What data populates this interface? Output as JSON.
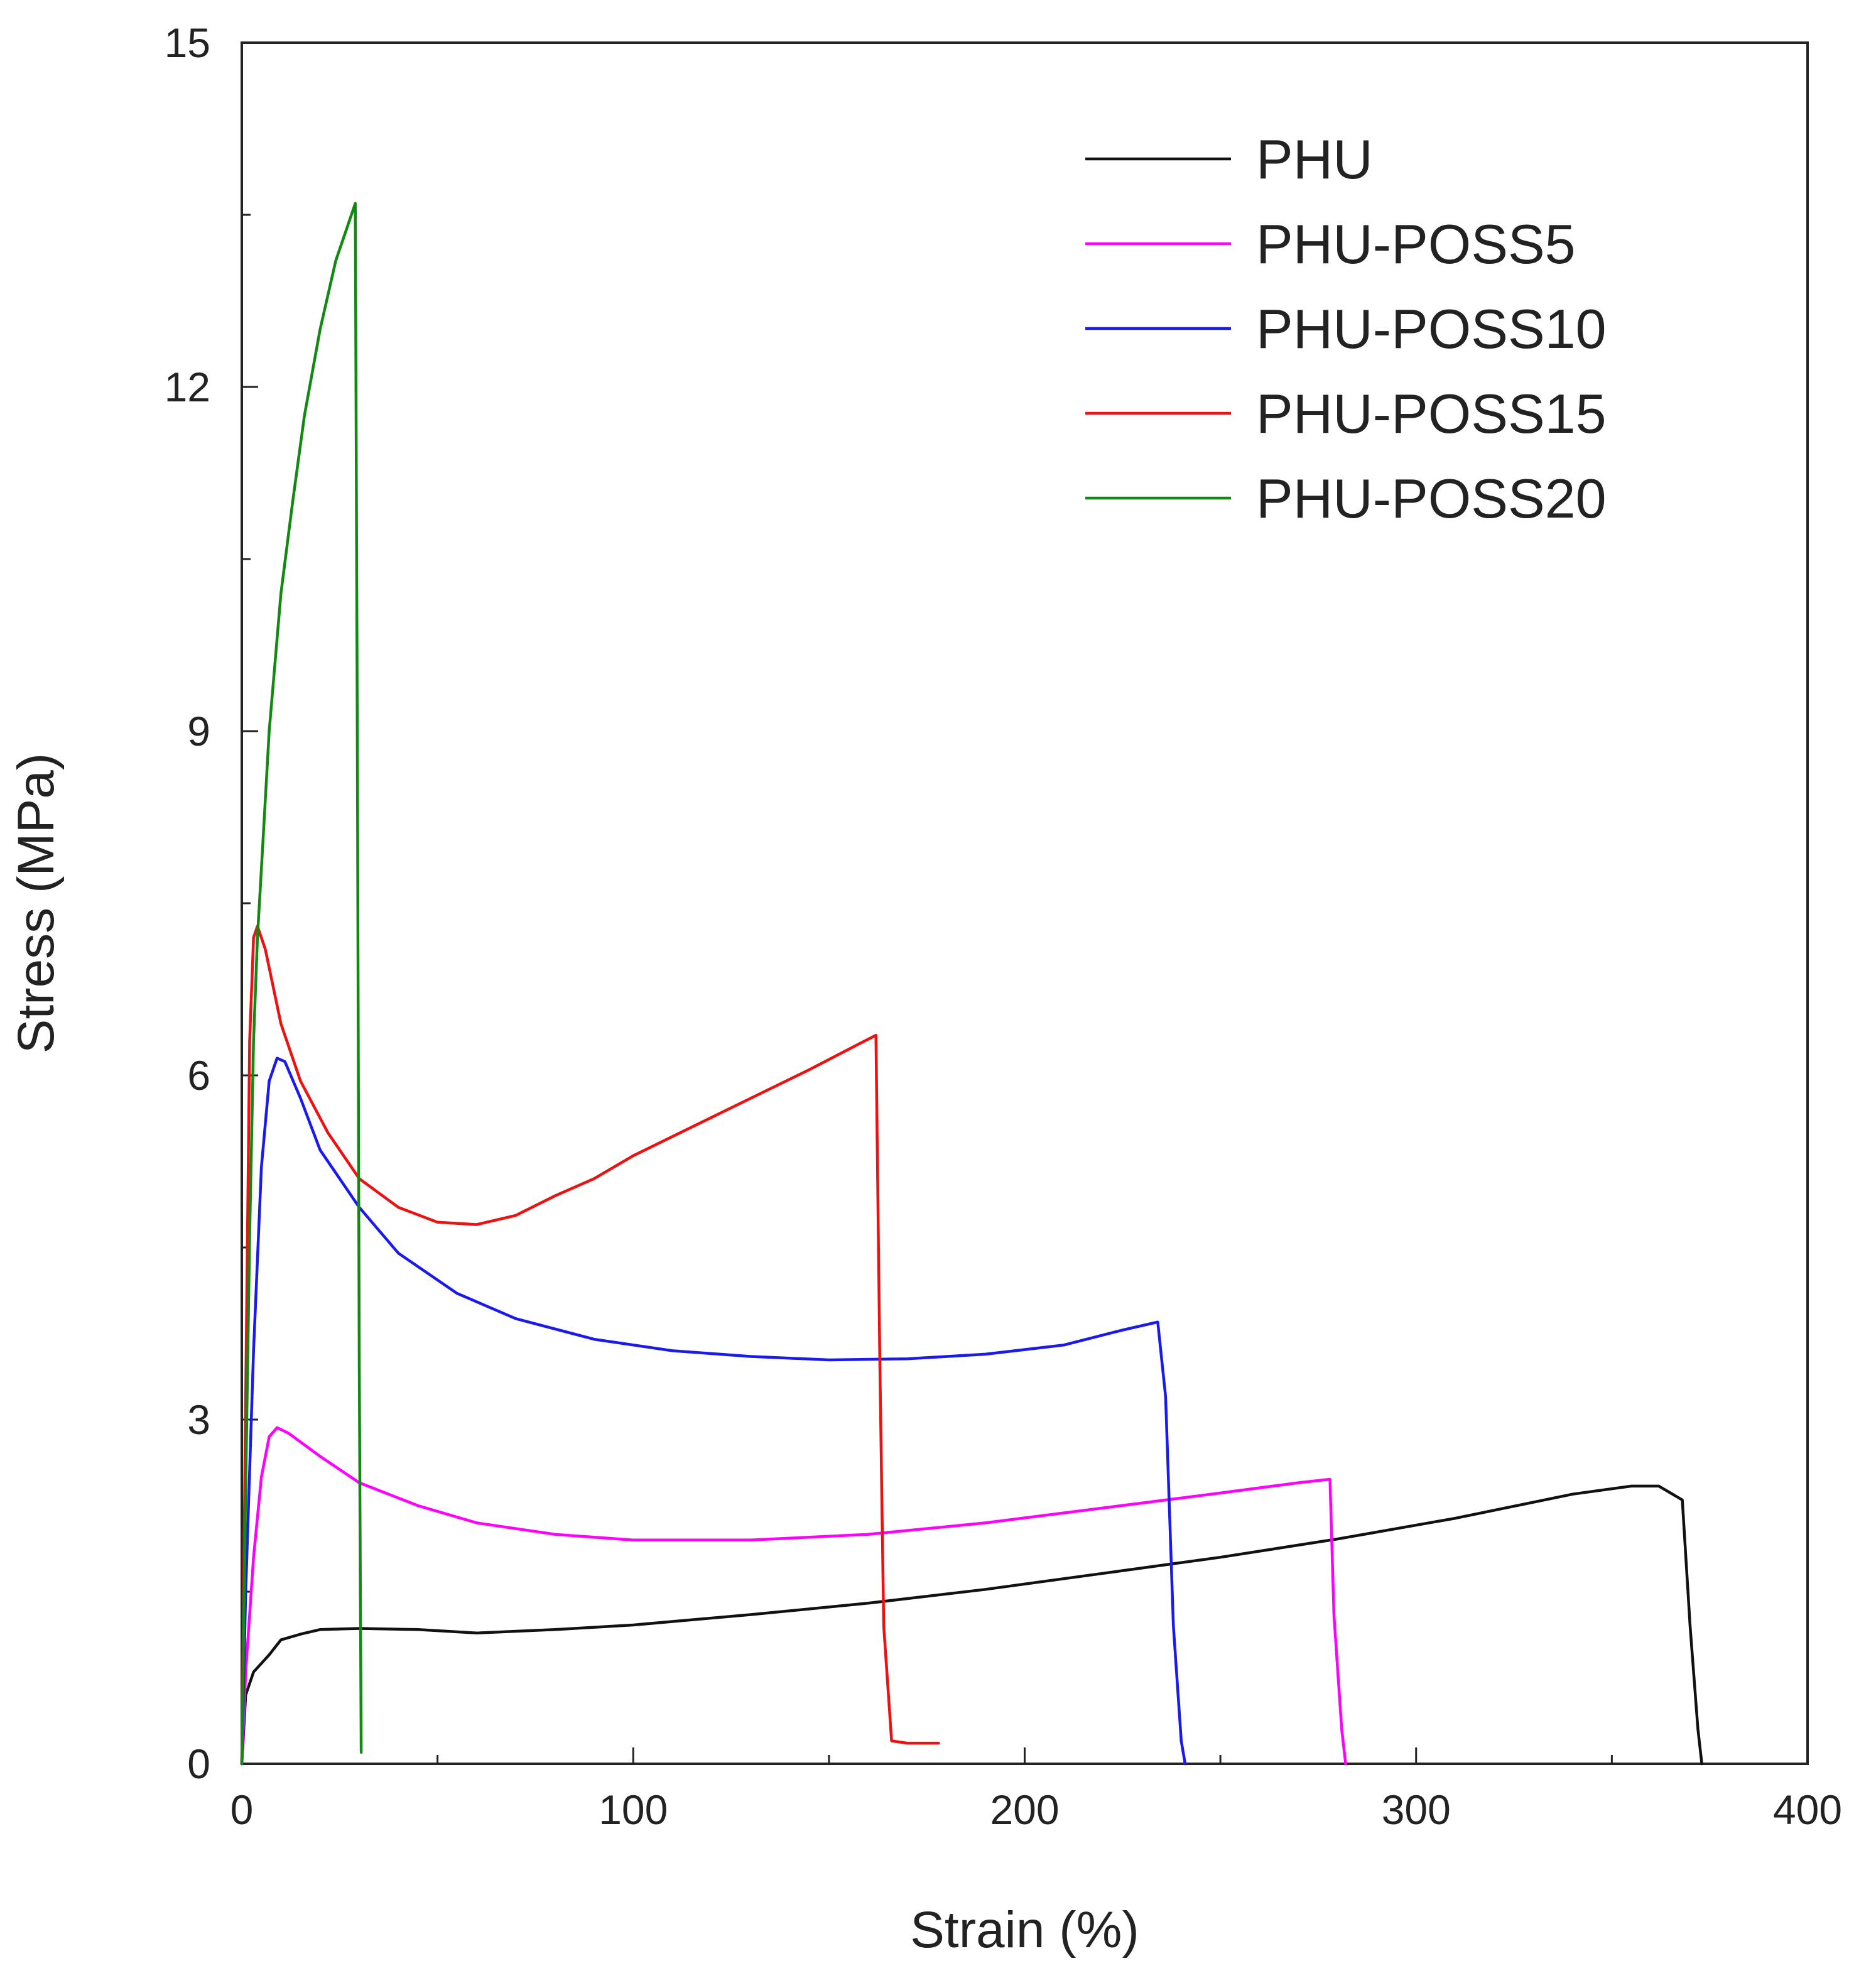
{
  "chart_data": {
    "type": "line",
    "title": "",
    "xlabel": "Strain (%)",
    "ylabel": "Stress (MPa)",
    "xlim": [
      0,
      400
    ],
    "ylim": [
      0,
      15
    ],
    "x_ticks": [
      0,
      100,
      200,
      300,
      400
    ],
    "y_ticks": [
      0,
      3,
      6,
      9,
      12,
      15
    ],
    "x_tick_labels": [
      "0",
      "100",
      "200",
      "300",
      "400"
    ],
    "y_tick_labels": [
      "0",
      "3",
      "6",
      "9",
      "12",
      "15"
    ],
    "grid": false,
    "legend_position": "top-right",
    "series": [
      {
        "name": "PHU",
        "color": "#111111",
        "points": [
          [
            0,
            0
          ],
          [
            1,
            0.6
          ],
          [
            3,
            0.8
          ],
          [
            7,
            0.95
          ],
          [
            10,
            1.08
          ],
          [
            15,
            1.13
          ],
          [
            20,
            1.17
          ],
          [
            30,
            1.18
          ],
          [
            45,
            1.17
          ],
          [
            60,
            1.14
          ],
          [
            80,
            1.17
          ],
          [
            100,
            1.21
          ],
          [
            130,
            1.3
          ],
          [
            160,
            1.4
          ],
          [
            190,
            1.52
          ],
          [
            220,
            1.66
          ],
          [
            250,
            1.8
          ],
          [
            280,
            1.96
          ],
          [
            310,
            2.14
          ],
          [
            340,
            2.35
          ],
          [
            355,
            2.42
          ],
          [
            362,
            2.42
          ],
          [
            368,
            2.3
          ],
          [
            370,
            1.2
          ],
          [
            372,
            0.3
          ],
          [
            373,
            0
          ]
        ]
      },
      {
        "name": "PHU-POSS5",
        "color": "#ff00ff",
        "points": [
          [
            0,
            0
          ],
          [
            1,
            0.8
          ],
          [
            3,
            1.8
          ],
          [
            5,
            2.5
          ],
          [
            7,
            2.85
          ],
          [
            9,
            2.93
          ],
          [
            12,
            2.88
          ],
          [
            20,
            2.68
          ],
          [
            30,
            2.45
          ],
          [
            45,
            2.25
          ],
          [
            60,
            2.1
          ],
          [
            80,
            2.0
          ],
          [
            100,
            1.95
          ],
          [
            130,
            1.95
          ],
          [
            160,
            2.0
          ],
          [
            190,
            2.1
          ],
          [
            220,
            2.23
          ],
          [
            250,
            2.36
          ],
          [
            270,
            2.45
          ],
          [
            278,
            2.48
          ],
          [
            279,
            1.3
          ],
          [
            281,
            0.3
          ],
          [
            282,
            0
          ]
        ]
      },
      {
        "name": "PHU-POSS10",
        "color": "#1a1aee",
        "points": [
          [
            0,
            0
          ],
          [
            1,
            1.5
          ],
          [
            3,
            3.6
          ],
          [
            5,
            5.2
          ],
          [
            7,
            5.95
          ],
          [
            9,
            6.15
          ],
          [
            11,
            6.12
          ],
          [
            15,
            5.8
          ],
          [
            20,
            5.35
          ],
          [
            30,
            4.85
          ],
          [
            40,
            4.45
          ],
          [
            55,
            4.1
          ],
          [
            70,
            3.88
          ],
          [
            90,
            3.7
          ],
          [
            110,
            3.6
          ],
          [
            130,
            3.55
          ],
          [
            150,
            3.52
          ],
          [
            170,
            3.53
          ],
          [
            190,
            3.57
          ],
          [
            210,
            3.65
          ],
          [
            225,
            3.78
          ],
          [
            234,
            3.85
          ],
          [
            236,
            3.2
          ],
          [
            238,
            1.2
          ],
          [
            240,
            0.2
          ],
          [
            241,
            0
          ]
        ]
      },
      {
        "name": "PHU-POSS15",
        "color": "#ee1111",
        "points": [
          [
            0,
            0
          ],
          [
            1,
            3.2
          ],
          [
            2,
            6.3
          ],
          [
            3,
            7.2
          ],
          [
            4,
            7.3
          ],
          [
            6,
            7.1
          ],
          [
            10,
            6.45
          ],
          [
            15,
            5.95
          ],
          [
            22,
            5.5
          ],
          [
            30,
            5.1
          ],
          [
            40,
            4.85
          ],
          [
            50,
            4.72
          ],
          [
            60,
            4.7
          ],
          [
            70,
            4.78
          ],
          [
            80,
            4.95
          ],
          [
            90,
            5.1
          ],
          [
            100,
            5.3
          ],
          [
            115,
            5.55
          ],
          [
            130,
            5.8
          ],
          [
            145,
            6.05
          ],
          [
            158,
            6.28
          ],
          [
            162,
            6.35
          ],
          [
            163,
            3.5
          ],
          [
            164,
            1.2
          ],
          [
            166,
            0.2
          ],
          [
            170,
            0.18
          ],
          [
            178,
            0.18
          ]
        ]
      },
      {
        "name": "PHU-POSS20",
        "color": "#128a12",
        "points": [
          [
            0,
            0
          ],
          [
            1,
            2.4
          ],
          [
            2,
            4.6
          ],
          [
            3,
            6.3
          ],
          [
            4,
            7.2
          ],
          [
            5,
            7.8
          ],
          [
            7,
            9.0
          ],
          [
            10,
            10.2
          ],
          [
            13,
            11.0
          ],
          [
            16,
            11.75
          ],
          [
            20,
            12.5
          ],
          [
            24,
            13.1
          ],
          [
            27,
            13.4
          ],
          [
            29,
            13.6
          ],
          [
            29.5,
            9.0
          ],
          [
            30,
            3.5
          ],
          [
            30.5,
            0.1
          ]
        ]
      }
    ]
  }
}
